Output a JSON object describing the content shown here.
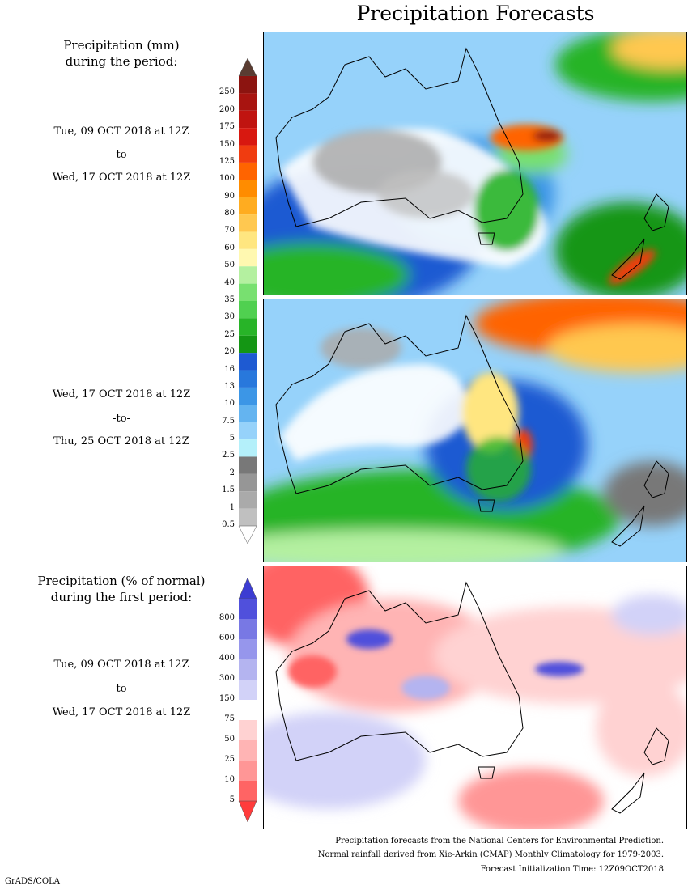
{
  "title": "Precipitation Forecasts",
  "precip_header": [
    "Precipitation (mm)",
    "during the period:"
  ],
  "period1": {
    "start": "Tue, 09 OCT 2018 at 12Z",
    "sep": "-to-",
    "end": "Wed, 17 OCT 2018 at 12Z"
  },
  "period2": {
    "start": "Wed, 17 OCT 2018 at 12Z",
    "sep": "-to-",
    "end": "Thu, 25 OCT 2018 at 12Z"
  },
  "pct_header": [
    "Precipitation (% of normal)",
    "during the first period:"
  ],
  "period3": {
    "start": "Tue, 09 OCT 2018 at 12Z",
    "sep": "-to-",
    "end": "Wed, 17 OCT 2018 at 12Z"
  },
  "precip_colorbar": {
    "labels": [
      "250",
      "200",
      "175",
      "150",
      "125",
      "100",
      "90",
      "80",
      "70",
      "60",
      "50",
      "40",
      "35",
      "30",
      "25",
      "20",
      "16",
      "13",
      "10",
      "7.5",
      "5",
      "2.5",
      "2",
      "1.5",
      "1",
      "0.5"
    ],
    "colors": [
      "#8c1410",
      "#a81410",
      "#c01410",
      "#d81810",
      "#f03c10",
      "#ff6400",
      "#ff8c00",
      "#ffac20",
      "#ffc850",
      "#ffe680",
      "#fff8b0",
      "#b4f0a0",
      "#78e070",
      "#50d050",
      "#28b428",
      "#149614",
      "#1e5ad2",
      "#2878dc",
      "#3c96e6",
      "#64b4f0",
      "#96d2fa",
      "#b4f0fa",
      "#787878",
      "#969696",
      "#aaaaaa",
      "#c0c0c0"
    ],
    "top_arrow_color": "#5a3c32",
    "bottom_arrow_color": "#ffffff"
  },
  "pct_colorbar": {
    "labels": [
      "800",
      "600",
      "400",
      "300",
      "150",
      "75",
      "50",
      "25",
      "10",
      "5"
    ],
    "colors": [
      "#5050dc",
      "#7878e4",
      "#9696ec",
      "#b4b4f0",
      "#d2d2f8",
      "#ffffff",
      "#ffd2d2",
      "#ffb4b4",
      "#ff9696",
      "#ff6464"
    ],
    "top_arrow_color": "#3c3cd2",
    "bottom_arrow_color": "#ff3c3c"
  },
  "footer": [
    "Precipitation forecasts from the National Centers for Environmental Prediction.",
    "Normal rainfall derived from Xie-Arkin (CMAP) Monthly Climatology for 1979-2003.",
    "Forecast Initialization Time: 12Z09OCT2018"
  ],
  "credit": "GrADS/COLA"
}
